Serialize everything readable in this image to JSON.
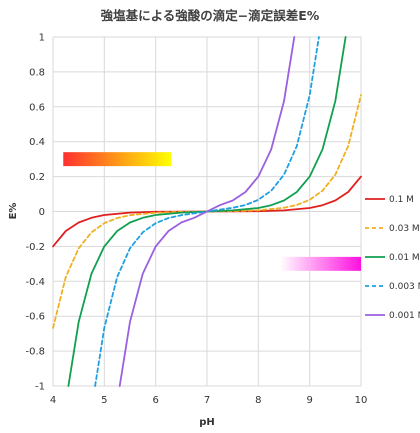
{
  "chart_data": {
    "type": "line",
    "title": "強塩基による強酸の滴定−滴定誤差E%",
    "xlabel": "pH",
    "ylabel": "E%",
    "xlim": [
      4,
      10
    ],
    "ylim": [
      -1,
      1
    ],
    "xticks": [
      4,
      5,
      6,
      7,
      8,
      9,
      10
    ],
    "yticks": [
      -1,
      -0.8,
      -0.6,
      -0.4,
      -0.2,
      0,
      0.2,
      0.4,
      0.6,
      0.8,
      1
    ],
    "grid": true,
    "legend_position": "right",
    "series": [
      {
        "name": "0.1 M",
        "color": "#e02020",
        "dash": "solid",
        "x": [
          4.0,
          4.25,
          4.5,
          4.75,
          5.0,
          5.5,
          6.0,
          6.5,
          7.0,
          7.5,
          8.0,
          8.5,
          9.0,
          9.25,
          9.5,
          9.75,
          10.0
        ],
        "y": [
          -0.2,
          -0.112,
          -0.063,
          -0.036,
          -0.02,
          -0.0063,
          -0.002,
          -0.0006,
          0.0,
          0.0006,
          0.002,
          0.0063,
          0.02,
          0.036,
          0.063,
          0.112,
          0.2
        ]
      },
      {
        "name": "0.03 M",
        "color": "#f0b020",
        "dash": "dashed",
        "x": [
          4.0,
          4.25,
          4.5,
          4.75,
          5.0,
          5.25,
          5.5,
          6.0,
          6.5,
          7.0,
          7.5,
          8.0,
          8.5,
          8.75,
          9.0,
          9.25,
          9.5,
          9.75,
          10.0
        ],
        "y": [
          -0.667,
          -0.375,
          -0.211,
          -0.119,
          -0.067,
          -0.037,
          -0.021,
          -0.0067,
          -0.0021,
          0.0,
          0.0021,
          0.0067,
          0.021,
          0.037,
          0.067,
          0.119,
          0.211,
          0.375,
          0.667
        ]
      },
      {
        "name": "0.01 M",
        "color": "#10a050",
        "dash": "solid",
        "x": [
          4.3,
          4.5,
          4.75,
          5.0,
          5.25,
          5.5,
          5.75,
          6.0,
          6.5,
          7.0,
          7.5,
          8.0,
          8.25,
          8.5,
          8.75,
          9.0,
          9.25,
          9.5,
          9.7
        ],
        "y": [
          -1.0,
          -0.632,
          -0.356,
          -0.2,
          -0.112,
          -0.063,
          -0.036,
          -0.02,
          -0.0063,
          0.0,
          0.0063,
          0.02,
          0.036,
          0.063,
          0.112,
          0.2,
          0.356,
          0.632,
          1.0
        ]
      },
      {
        "name": "0.003 M",
        "color": "#20a0e0",
        "dash": "dashed",
        "x": [
          4.82,
          5.0,
          5.25,
          5.5,
          5.75,
          6.0,
          6.25,
          6.5,
          7.0,
          7.5,
          7.75,
          8.0,
          8.25,
          8.5,
          8.75,
          9.0,
          9.18
        ],
        "y": [
          -1.0,
          -0.667,
          -0.375,
          -0.211,
          -0.119,
          -0.067,
          -0.037,
          -0.021,
          0.0,
          0.021,
          0.037,
          0.067,
          0.119,
          0.211,
          0.375,
          0.667,
          1.0
        ]
      },
      {
        "name": "0.001 M",
        "color": "#9a60e0",
        "dash": "solid",
        "x": [
          5.3,
          5.5,
          5.75,
          6.0,
          6.25,
          6.5,
          6.75,
          7.0,
          7.25,
          7.5,
          7.75,
          8.0,
          8.25,
          8.5,
          8.7
        ],
        "y": [
          -1.0,
          -0.632,
          -0.356,
          -0.2,
          -0.112,
          -0.063,
          -0.036,
          0.0,
          0.036,
          0.063,
          0.112,
          0.2,
          0.356,
          0.632,
          1.0
        ]
      }
    ],
    "annotations": [
      {
        "type": "gradient-bar",
        "x0": 4.2,
        "x1": 6.3,
        "y0": 0.26,
        "y1": 0.34,
        "from": "#ff3030",
        "to": "#ffff00"
      },
      {
        "type": "gradient-bar",
        "x0": 8.42,
        "x1": 10.0,
        "y0": -0.26,
        "y1": -0.34,
        "from": "#ffffff",
        "to": "#ff10e0"
      }
    ]
  }
}
